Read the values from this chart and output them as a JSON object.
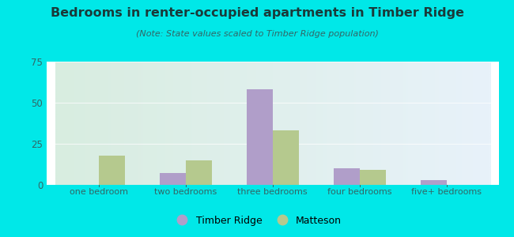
{
  "title": "Bedrooms in renter-occupied apartments in Timber Ridge",
  "subtitle": "(Note: State values scaled to Timber Ridge population)",
  "categories": [
    "one bedroom",
    "two bedrooms",
    "three bedrooms",
    "four bedrooms",
    "five+ bedrooms"
  ],
  "timber_ridge": [
    0,
    7,
    58,
    10,
    3
  ],
  "matteson": [
    18,
    15,
    33,
    9,
    0
  ],
  "timber_ridge_color": "#b09ec9",
  "matteson_color": "#b5c98e",
  "ylim": [
    0,
    75
  ],
  "yticks": [
    0,
    25,
    50,
    75
  ],
  "bg_color": "#00e8e8",
  "plot_bg_topleft": "#d8ede0",
  "plot_bg_topright": "#ddeaf5",
  "plot_bg_bottomleft": "#d8ede0",
  "plot_bg_bottomright": "#ddeaf5",
  "title_color": "#1a3a3a",
  "subtitle_color": "#336666",
  "axis_color": "#336666",
  "tick_color": "#336666",
  "bar_width": 0.3,
  "legend_timber": "Timber Ridge",
  "legend_matteson": "Matteson"
}
